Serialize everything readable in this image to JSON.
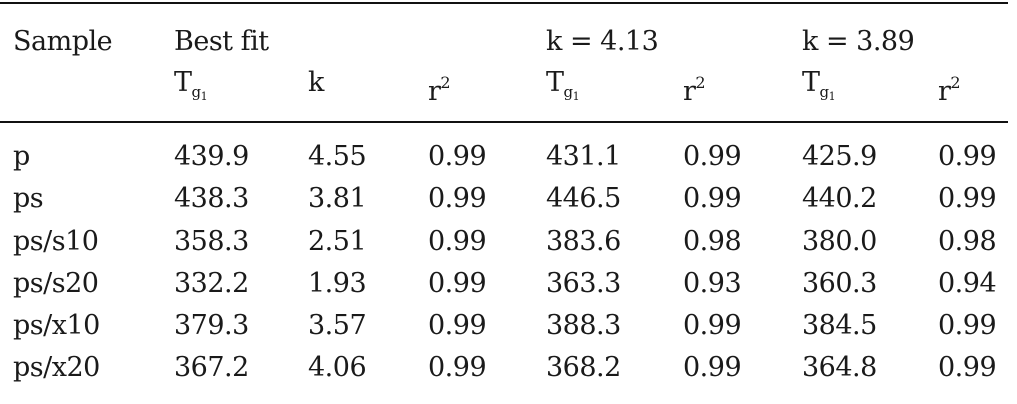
{
  "table": {
    "group_headers": {
      "sample": "Sample",
      "best_fit": "Best fit",
      "k1": "k = 4.13",
      "k2": "k = 3.89"
    },
    "sub_headers": {
      "tg": "T",
      "tg_sub": "g",
      "tg_subsub": "1",
      "k": "k",
      "r": "r",
      "r_sup": "2"
    },
    "rows": [
      {
        "sample": "p",
        "tg_best": "439.9",
        "k": "4.55",
        "r2_best": "0.99",
        "tg_k1": "431.1",
        "r2_k1": "0.99",
        "tg_k2": "425.9",
        "r2_k2": "0.99"
      },
      {
        "sample": "ps",
        "tg_best": "438.3",
        "k": "3.81",
        "r2_best": "0.99",
        "tg_k1": "446.5",
        "r2_k1": "0.99",
        "tg_k2": "440.2",
        "r2_k2": "0.99"
      },
      {
        "sample": "ps/s10",
        "tg_best": "358.3",
        "k": "2.51",
        "r2_best": "0.99",
        "tg_k1": "383.6",
        "r2_k1": "0.98",
        "tg_k2": "380.0",
        "r2_k2": "0.98"
      },
      {
        "sample": "ps/s20",
        "tg_best": "332.2",
        "k": "1.93",
        "r2_best": "0.99",
        "tg_k1": "363.3",
        "r2_k1": "0.93",
        "tg_k2": "360.3",
        "r2_k2": "0.94"
      },
      {
        "sample": "ps/x10",
        "tg_best": "379.3",
        "k": "3.57",
        "r2_best": "0.99",
        "tg_k1": "388.3",
        "r2_k1": "0.99",
        "tg_k2": "384.5",
        "r2_k2": "0.99"
      },
      {
        "sample": "ps/x20",
        "tg_best": "367.2",
        "k": "4.06",
        "r2_best": "0.99",
        "tg_k1": "368.2",
        "r2_k1": "0.99",
        "tg_k2": "364.8",
        "r2_k2": "0.99"
      }
    ]
  }
}
